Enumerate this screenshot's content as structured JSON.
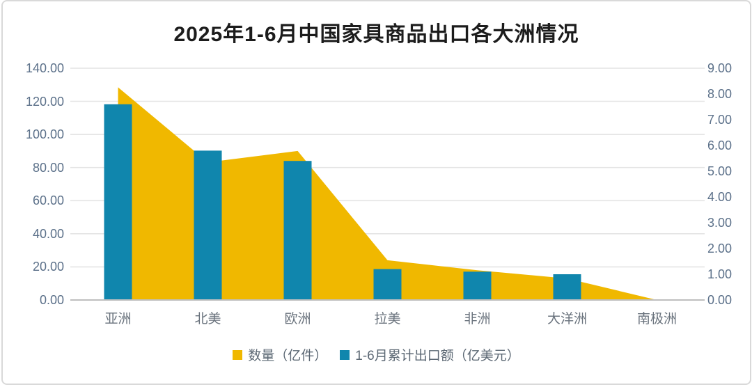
{
  "chart_data": {
    "type": "combo",
    "title": "2025年1-6月中国家具商品出口各大洲情况",
    "categories": [
      "亚洲",
      "北美",
      "欧洲",
      "拉美",
      "非洲",
      "大洋洲",
      "南极洲"
    ],
    "series": [
      {
        "name": "数量（亿件）",
        "type": "area",
        "axis": "left",
        "color": "#F0B800",
        "values": [
          128.5,
          83.2,
          90.0,
          24.0,
          18.0,
          13.0,
          0.0
        ]
      },
      {
        "name": "1-6月累计出口额（亿美元）",
        "type": "bar",
        "axis": "right",
        "color": "#1086AD",
        "values": [
          7.6,
          5.8,
          5.4,
          1.2,
          1.1,
          1.0,
          0.0
        ]
      }
    ],
    "left_axis": {
      "min": 0,
      "max": 140,
      "step": 20,
      "tick_labels": [
        "140.00",
        "120.00",
        "100.00",
        "80.00",
        "60.00",
        "40.00",
        "20.00",
        "0.00"
      ]
    },
    "right_axis": {
      "min": 0,
      "max": 9,
      "step": 1,
      "tick_labels": [
        "9.00",
        "8.00",
        "7.00",
        "6.00",
        "5.00",
        "4.00",
        "3.00",
        "2.00",
        "1.00",
        "0.00"
      ]
    },
    "grid": true,
    "legend_position": "bottom",
    "colors": {
      "gridline": "#e4e4e4",
      "axis_line": "#bfbfbf",
      "tick_text": "#5b7089",
      "category_text": "#6a737d",
      "legend_text": "#5c6874",
      "title_text": "#1c1c1c"
    }
  }
}
